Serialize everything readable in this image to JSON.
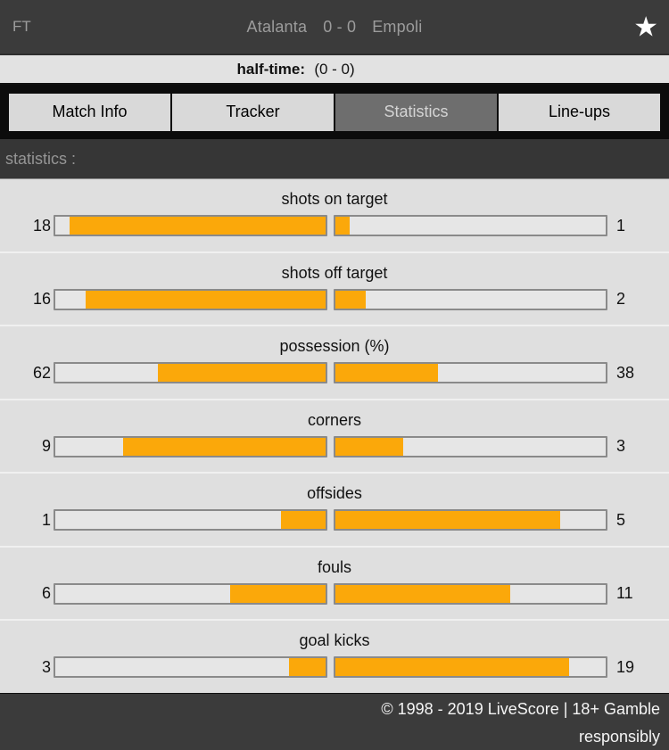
{
  "colors": {
    "accent": "#fba80a",
    "top_bar_bg": "#3b3b3b",
    "tab_bar_bg": "#0c0c0c",
    "active_tab_bg": "#6e6e6e",
    "content_bg": "#dfdfdf",
    "bar_border": "#8a8a8a"
  },
  "top_bar": {
    "status": "FT",
    "home_team": "Atalanta",
    "score": "0 - 0",
    "away_team": "Empoli",
    "favorite_icon": "star"
  },
  "half_time": {
    "label": "half-time:",
    "score": "(0 - 0)"
  },
  "tabs": {
    "items": [
      {
        "label": "Match Info",
        "active": false
      },
      {
        "label": "Tracker",
        "active": false
      },
      {
        "label": "Statistics",
        "active": true
      },
      {
        "label": "Line-ups",
        "active": false
      }
    ]
  },
  "section": {
    "title": "statistics :"
  },
  "chart_data": {
    "type": "bar",
    "title": "statistics",
    "categories": [
      "shots on target",
      "shots off target",
      "possession (%)",
      "corners",
      "offsides",
      "fouls",
      "goal kicks"
    ],
    "series": [
      {
        "name": "Atalanta",
        "values": [
          18,
          16,
          62,
          9,
          1,
          6,
          3
        ]
      },
      {
        "name": "Empoli",
        "values": [
          1,
          2,
          38,
          3,
          5,
          11,
          19
        ]
      }
    ],
    "note": "each pair of bars is filled proportionally to value/(home+away), growing outward from the centre"
  },
  "stats": {
    "rows": [
      {
        "title": "shots on target",
        "home": 18,
        "away": 1
      },
      {
        "title": "shots off target",
        "home": 16,
        "away": 2
      },
      {
        "title": "possession (%)",
        "home": 62,
        "away": 38
      },
      {
        "title": "corners",
        "home": 9,
        "away": 3
      },
      {
        "title": "offsides",
        "home": 1,
        "away": 5
      },
      {
        "title": "fouls",
        "home": 6,
        "away": 11
      },
      {
        "title": "goal kicks",
        "home": 3,
        "away": 19
      }
    ]
  },
  "footer": {
    "line1": "© 1998 - 2019 LiveScore | 18+ Gamble",
    "line2": "responsibly"
  }
}
